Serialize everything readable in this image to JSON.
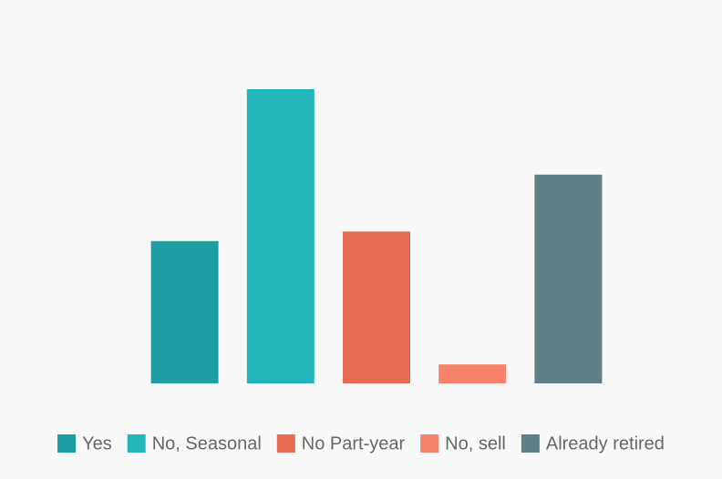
{
  "chart_data": {
    "type": "bar",
    "categories": [
      "Yes",
      "No, Seasonal",
      "No Part-year",
      "No, sell",
      "Already retired"
    ],
    "values": [
      15,
      31,
      16,
      2,
      22
    ],
    "colors": [
      "#1e9ea3",
      "#22b5bb",
      "#e56b53",
      "#f7846a",
      "#607e86"
    ],
    "legend": "bottom"
  }
}
